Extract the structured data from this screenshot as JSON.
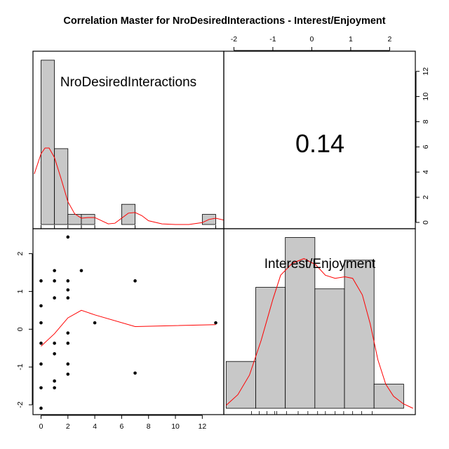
{
  "title": "Correlation Master for NroDesiredInteractions - Interest/Enjoyment",
  "colors": {
    "bar_fill": "#c8c8c8",
    "density": "#ff0000",
    "point": "#000000",
    "loess": "#ff0000"
  },
  "chart_data": {
    "type": "scatter-matrix",
    "title": "Correlation Master for NroDesiredInteractions - Interest/Enjoyment",
    "variables": [
      "NroDesiredInteractions",
      "Interest/Enjoyment"
    ],
    "correlation": {
      "value_label": "0.14",
      "value": 0.14
    },
    "axes": {
      "bottom_x": {
        "variable": "NroDesiredInteractions",
        "ticks": [
          "0",
          "2",
          "4",
          "6",
          "8",
          "10",
          "12"
        ],
        "range": [
          -0.6,
          13.6
        ]
      },
      "left_y": {
        "variable": "Interest/Enjoyment",
        "ticks": [
          "-2",
          "-1",
          "0",
          "1",
          "2"
        ],
        "range": [
          -2.26,
          2.66
        ]
      },
      "top_x": {
        "variable": "Interest/Enjoyment",
        "ticks": [
          "-2",
          "-1",
          "0",
          "1",
          "2"
        ],
        "range": [
          -2.26,
          2.66
        ]
      },
      "right_y": {
        "ticks": [
          "0",
          "2",
          "4",
          "6",
          "8",
          "10",
          "12"
        ],
        "range": [
          -0.5,
          13.6
        ]
      }
    },
    "histograms": [
      {
        "variable": "NroDesiredInteractions",
        "bins": [
          {
            "x0": 0,
            "x1": 1,
            "count": 13
          },
          {
            "x0": 1,
            "x1": 2,
            "count": 6
          },
          {
            "x0": 2,
            "x1": 3,
            "count": 0.8
          },
          {
            "x0": 3,
            "x1": 4,
            "count": 0.8
          },
          {
            "x0": 4,
            "x1": 5,
            "count": 0
          },
          {
            "x0": 5,
            "x1": 6,
            "count": 0
          },
          {
            "x0": 6,
            "x1": 7,
            "count": 1.6
          },
          {
            "x0": 7,
            "x1": 8,
            "count": 0
          },
          {
            "x0": 8,
            "x1": 9,
            "count": 0
          },
          {
            "x0": 9,
            "x1": 10,
            "count": 0
          },
          {
            "x0": 10,
            "x1": 11,
            "count": 0
          },
          {
            "x0": 11,
            "x1": 12,
            "count": 0
          },
          {
            "x0": 12,
            "x1": 13,
            "count": 0.8
          }
        ],
        "density": [
          [
            -0.5,
            4.0
          ],
          [
            0,
            5.6
          ],
          [
            0.3,
            6.05
          ],
          [
            0.6,
            6.05
          ],
          [
            1.0,
            5.3
          ],
          [
            1.5,
            3.6
          ],
          [
            2.0,
            1.8
          ],
          [
            2.5,
            0.85
          ],
          [
            3.0,
            0.5
          ],
          [
            3.5,
            0.55
          ],
          [
            4.0,
            0.55
          ],
          [
            4.5,
            0.3
          ],
          [
            5.0,
            0.05
          ],
          [
            5.5,
            0.1
          ],
          [
            6.0,
            0.5
          ],
          [
            6.5,
            0.9
          ],
          [
            7.0,
            0.95
          ],
          [
            7.5,
            0.7
          ],
          [
            8.0,
            0.3
          ],
          [
            9.0,
            0.05
          ],
          [
            10.0,
            0.0
          ],
          [
            11.0,
            0.0
          ],
          [
            12.0,
            0.15
          ],
          [
            12.5,
            0.4
          ],
          [
            13.0,
            0.5
          ],
          [
            13.6,
            0.35
          ]
        ],
        "rug": [
          0,
          1,
          2,
          3,
          4,
          7,
          13
        ]
      },
      {
        "variable": "Interest/Enjoyment",
        "bins": [
          {
            "x0": -2.2,
            "x1": -1.44,
            "count": 3.1
          },
          {
            "x0": -1.44,
            "x1": -0.68,
            "count": 8.0
          },
          {
            "x0": -0.68,
            "x1": 0.08,
            "count": 11.3
          },
          {
            "x0": 0.08,
            "x1": 0.84,
            "count": 7.9
          },
          {
            "x0": 0.84,
            "x1": 1.6,
            "count": 9.8
          },
          {
            "x0": 1.6,
            "x1": 2.36,
            "count": 1.6
          }
        ],
        "density": [
          [
            -2.2,
            0.2
          ],
          [
            -1.9,
            0.9
          ],
          [
            -1.6,
            2.2
          ],
          [
            -1.3,
            4.5
          ],
          [
            -1.0,
            7.2
          ],
          [
            -0.8,
            8.8
          ],
          [
            -0.5,
            9.6
          ],
          [
            -0.2,
            9.9
          ],
          [
            0.1,
            9.5
          ],
          [
            0.35,
            8.8
          ],
          [
            0.6,
            8.6
          ],
          [
            0.85,
            8.7
          ],
          [
            1.05,
            8.6
          ],
          [
            1.3,
            7.5
          ],
          [
            1.5,
            5.6
          ],
          [
            1.7,
            3.2
          ],
          [
            1.9,
            1.6
          ],
          [
            2.1,
            0.8
          ],
          [
            2.35,
            0.3
          ],
          [
            2.6,
            0.0
          ]
        ],
        "rug": [
          -1.55,
          -1.35,
          -1.15,
          -0.95,
          -0.9,
          -0.65,
          -0.35,
          -0.1,
          0.15,
          0.35,
          0.6,
          0.82,
          1.05,
          1.28,
          1.55
        ]
      }
    ],
    "scatter": {
      "x_variable": "NroDesiredInteractions",
      "y_variable": "Interest/Enjoyment",
      "points": [
        [
          0,
          1.28
        ],
        [
          0,
          0.62
        ],
        [
          0,
          0.17
        ],
        [
          0,
          -0.37
        ],
        [
          0,
          -0.92
        ],
        [
          0,
          -1.55
        ],
        [
          0,
          -2.09
        ],
        [
          1,
          1.55
        ],
        [
          1,
          1.28
        ],
        [
          1,
          0.83
        ],
        [
          1,
          -0.37
        ],
        [
          1,
          -0.65
        ],
        [
          1,
          -1.37
        ],
        [
          1,
          -1.55
        ],
        [
          2,
          2.44
        ],
        [
          2,
          1.28
        ],
        [
          2,
          1.04
        ],
        [
          2,
          0.83
        ],
        [
          2,
          -0.1
        ],
        [
          2,
          -0.37
        ],
        [
          2,
          -0.92
        ],
        [
          2,
          -1.19
        ],
        [
          3,
          1.55
        ],
        [
          4,
          0.17
        ],
        [
          7,
          1.28
        ],
        [
          7,
          -1.16
        ],
        [
          13,
          0.17
        ]
      ],
      "smoother": [
        [
          0,
          -0.45
        ],
        [
          1,
          -0.12
        ],
        [
          2,
          0.3
        ],
        [
          3,
          0.5
        ],
        [
          4,
          0.38
        ],
        [
          7,
          0.07
        ],
        [
          13,
          0.12
        ]
      ]
    }
  }
}
